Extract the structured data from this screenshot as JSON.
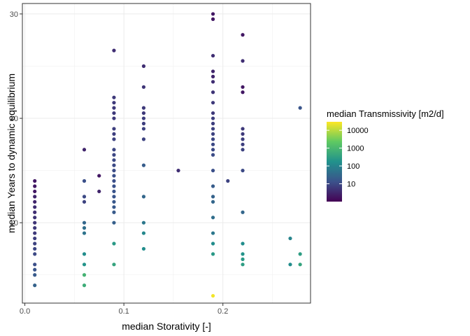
{
  "chart_data": {
    "type": "scatter",
    "title": "",
    "xlabel": "median Storativity [-]",
    "ylabel": "median Years to dynamic equilibrium",
    "xlim": [
      -0.0025,
      0.2885
    ],
    "ylim": [
      2.3,
      31.0
    ],
    "x_ticks": [
      0.0,
      0.1,
      0.2
    ],
    "x_tick_labels": [
      "0.0",
      "0.1",
      "0.2"
    ],
    "y_ticks": [
      10,
      20,
      30
    ],
    "y_tick_labels": [
      "10",
      "20",
      "30"
    ],
    "grid": true,
    "legend": {
      "title": "median Transmissivity [m2/d]",
      "placement": "right",
      "scale": "log",
      "range": [
        1,
        30000
      ],
      "ticks": [
        10,
        100,
        1000,
        10000
      ],
      "tick_labels": [
        "10",
        "100",
        "1000",
        "10000"
      ],
      "colors": [
        "#440154",
        "#3b528b",
        "#21918c",
        "#5ec962",
        "#fde725"
      ]
    },
    "points": [
      {
        "x": 0.01,
        "y": 14,
        "t": 2
      },
      {
        "x": 0.01,
        "y": 13.5,
        "t": 2
      },
      {
        "x": 0.01,
        "y": 13,
        "t": 2
      },
      {
        "x": 0.01,
        "y": 12.5,
        "t": 3
      },
      {
        "x": 0.01,
        "y": 12,
        "t": 3
      },
      {
        "x": 0.01,
        "y": 11.5,
        "t": 4
      },
      {
        "x": 0.01,
        "y": 11,
        "t": 4
      },
      {
        "x": 0.01,
        "y": 10.5,
        "t": 5
      },
      {
        "x": 0.01,
        "y": 10,
        "t": 5
      },
      {
        "x": 0.01,
        "y": 9.5,
        "t": 6
      },
      {
        "x": 0.01,
        "y": 9,
        "t": 6
      },
      {
        "x": 0.01,
        "y": 8.5,
        "t": 7
      },
      {
        "x": 0.01,
        "y": 8,
        "t": 8
      },
      {
        "x": 0.01,
        "y": 7.5,
        "t": 9
      },
      {
        "x": 0.01,
        "y": 7,
        "t": 10
      },
      {
        "x": 0.01,
        "y": 6,
        "t": 12
      },
      {
        "x": 0.01,
        "y": 5.5,
        "t": 15
      },
      {
        "x": 0.01,
        "y": 5,
        "t": 18
      },
      {
        "x": 0.01,
        "y": 4,
        "t": 25
      },
      {
        "x": 0.06,
        "y": 17,
        "t": 3
      },
      {
        "x": 0.06,
        "y": 14,
        "t": 12
      },
      {
        "x": 0.06,
        "y": 12.5,
        "t": 10
      },
      {
        "x": 0.06,
        "y": 12,
        "t": 8
      },
      {
        "x": 0.06,
        "y": 10,
        "t": 30
      },
      {
        "x": 0.06,
        "y": 9.5,
        "t": 40
      },
      {
        "x": 0.06,
        "y": 9,
        "t": 50
      },
      {
        "x": 0.06,
        "y": 7,
        "t": 150
      },
      {
        "x": 0.06,
        "y": 6,
        "t": 200
      },
      {
        "x": 0.06,
        "y": 5,
        "t": 800
      },
      {
        "x": 0.06,
        "y": 4,
        "t": 600
      },
      {
        "x": 0.075,
        "y": 14.5,
        "t": 2
      },
      {
        "x": 0.075,
        "y": 13,
        "t": 3
      },
      {
        "x": 0.09,
        "y": 26.5,
        "t": 4
      },
      {
        "x": 0.09,
        "y": 22,
        "t": 6
      },
      {
        "x": 0.09,
        "y": 21.5,
        "t": 6
      },
      {
        "x": 0.09,
        "y": 21,
        "t": 6
      },
      {
        "x": 0.09,
        "y": 20.5,
        "t": 6
      },
      {
        "x": 0.09,
        "y": 20,
        "t": 6
      },
      {
        "x": 0.09,
        "y": 19,
        "t": 7
      },
      {
        "x": 0.09,
        "y": 18.5,
        "t": 7
      },
      {
        "x": 0.09,
        "y": 18,
        "t": 8
      },
      {
        "x": 0.09,
        "y": 17,
        "t": 9
      },
      {
        "x": 0.09,
        "y": 16.5,
        "t": 9
      },
      {
        "x": 0.09,
        "y": 16,
        "t": 10
      },
      {
        "x": 0.09,
        "y": 15.5,
        "t": 10
      },
      {
        "x": 0.09,
        "y": 15,
        "t": 11
      },
      {
        "x": 0.09,
        "y": 14.5,
        "t": 12
      },
      {
        "x": 0.09,
        "y": 14,
        "t": 12
      },
      {
        "x": 0.09,
        "y": 13.5,
        "t": 13
      },
      {
        "x": 0.09,
        "y": 13,
        "t": 14
      },
      {
        "x": 0.09,
        "y": 12.5,
        "t": 15
      },
      {
        "x": 0.09,
        "y": 12,
        "t": 16
      },
      {
        "x": 0.09,
        "y": 11.5,
        "t": 17
      },
      {
        "x": 0.09,
        "y": 11,
        "t": 18
      },
      {
        "x": 0.09,
        "y": 10,
        "t": 22
      },
      {
        "x": 0.09,
        "y": 8,
        "t": 250
      },
      {
        "x": 0.09,
        "y": 6,
        "t": 400
      },
      {
        "x": 0.12,
        "y": 25,
        "t": 4
      },
      {
        "x": 0.12,
        "y": 23,
        "t": 5
      },
      {
        "x": 0.12,
        "y": 21,
        "t": 6
      },
      {
        "x": 0.12,
        "y": 20.5,
        "t": 6
      },
      {
        "x": 0.12,
        "y": 20,
        "t": 7
      },
      {
        "x": 0.12,
        "y": 19.5,
        "t": 7
      },
      {
        "x": 0.12,
        "y": 19,
        "t": 8
      },
      {
        "x": 0.12,
        "y": 18,
        "t": 8
      },
      {
        "x": 0.12,
        "y": 15.5,
        "t": 20
      },
      {
        "x": 0.12,
        "y": 12.5,
        "t": 30
      },
      {
        "x": 0.12,
        "y": 10,
        "t": 60
      },
      {
        "x": 0.12,
        "y": 9,
        "t": 120
      },
      {
        "x": 0.12,
        "y": 7.5,
        "t": 150
      },
      {
        "x": 0.155,
        "y": 15,
        "t": 4
      },
      {
        "x": 0.19,
        "y": 30,
        "t": 2
      },
      {
        "x": 0.19,
        "y": 29.5,
        "t": 2
      },
      {
        "x": 0.19,
        "y": 26,
        "t": 4
      },
      {
        "x": 0.19,
        "y": 24.5,
        "t": 3
      },
      {
        "x": 0.19,
        "y": 24,
        "t": 3
      },
      {
        "x": 0.19,
        "y": 23.5,
        "t": 4
      },
      {
        "x": 0.19,
        "y": 22.5,
        "t": 5
      },
      {
        "x": 0.19,
        "y": 21.5,
        "t": 6
      },
      {
        "x": 0.19,
        "y": 20.5,
        "t": 6
      },
      {
        "x": 0.19,
        "y": 20,
        "t": 7
      },
      {
        "x": 0.19,
        "y": 19.5,
        "t": 7
      },
      {
        "x": 0.19,
        "y": 19,
        "t": 8
      },
      {
        "x": 0.19,
        "y": 18.5,
        "t": 8
      },
      {
        "x": 0.19,
        "y": 18,
        "t": 9
      },
      {
        "x": 0.19,
        "y": 17.5,
        "t": 10
      },
      {
        "x": 0.19,
        "y": 17,
        "t": 10
      },
      {
        "x": 0.19,
        "y": 16.5,
        "t": 11
      },
      {
        "x": 0.19,
        "y": 15,
        "t": 12
      },
      {
        "x": 0.19,
        "y": 13.5,
        "t": 20
      },
      {
        "x": 0.19,
        "y": 12.5,
        "t": 25
      },
      {
        "x": 0.19,
        "y": 12,
        "t": 30
      },
      {
        "x": 0.19,
        "y": 10.5,
        "t": 40
      },
      {
        "x": 0.19,
        "y": 9,
        "t": 60
      },
      {
        "x": 0.19,
        "y": 8,
        "t": 150
      },
      {
        "x": 0.19,
        "y": 7,
        "t": 250
      },
      {
        "x": 0.19,
        "y": 3,
        "t": 25000
      },
      {
        "x": 0.205,
        "y": 14,
        "t": 8
      },
      {
        "x": 0.22,
        "y": 28,
        "t": 2
      },
      {
        "x": 0.22,
        "y": 25.5,
        "t": 4
      },
      {
        "x": 0.22,
        "y": 23,
        "t": 2
      },
      {
        "x": 0.22,
        "y": 22.5,
        "t": 2
      },
      {
        "x": 0.22,
        "y": 19,
        "t": 6
      },
      {
        "x": 0.22,
        "y": 18.5,
        "t": 6
      },
      {
        "x": 0.22,
        "y": 18,
        "t": 7
      },
      {
        "x": 0.22,
        "y": 17.5,
        "t": 7
      },
      {
        "x": 0.22,
        "y": 17,
        "t": 8
      },
      {
        "x": 0.22,
        "y": 15,
        "t": 10
      },
      {
        "x": 0.22,
        "y": 11,
        "t": 30
      },
      {
        "x": 0.22,
        "y": 8,
        "t": 150
      },
      {
        "x": 0.22,
        "y": 7,
        "t": 200
      },
      {
        "x": 0.22,
        "y": 6.5,
        "t": 250
      },
      {
        "x": 0.22,
        "y": 6,
        "t": 300
      },
      {
        "x": 0.268,
        "y": 8.5,
        "t": 100
      },
      {
        "x": 0.268,
        "y": 6,
        "t": 150
      },
      {
        "x": 0.278,
        "y": 21,
        "t": 15
      },
      {
        "x": 0.278,
        "y": 7,
        "t": 300
      },
      {
        "x": 0.278,
        "y": 6,
        "t": 400
      }
    ]
  }
}
